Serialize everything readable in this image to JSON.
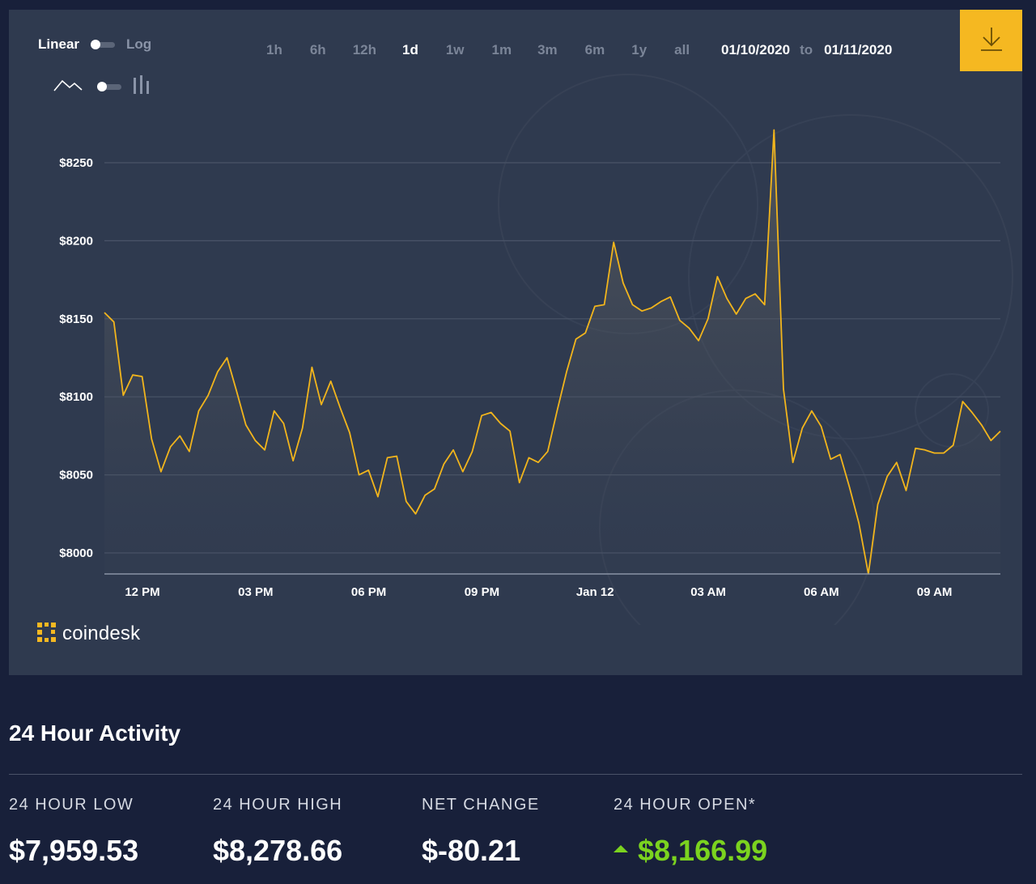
{
  "controls": {
    "scale_linear": "Linear",
    "scale_log": "Log",
    "ranges": [
      {
        "label": "1h",
        "active": false
      },
      {
        "label": "6h",
        "active": false
      },
      {
        "label": "12h",
        "active": false
      },
      {
        "label": "1d",
        "active": true
      },
      {
        "label": "1w",
        "active": false
      },
      {
        "label": "1m",
        "active": false
      },
      {
        "label": "3m",
        "active": false
      },
      {
        "label": "6m",
        "active": false
      },
      {
        "label": "1y",
        "active": false
      },
      {
        "label": "all",
        "active": false
      }
    ],
    "date_from": "01/10/2020",
    "date_to_word": "to",
    "date_to": "01/11/2020"
  },
  "brand": {
    "name": "coindesk",
    "accent": "#f5b821"
  },
  "colors": {
    "line": "#f2b51c",
    "grid": "#4a5468",
    "panel": "#2f3a4f",
    "page": "#18203a",
    "positive": "#7bd31f"
  },
  "chart_data": {
    "type": "area",
    "series": [
      {
        "values": [
          8154,
          8148,
          8101,
          8114,
          8113,
          8073,
          8052,
          8068,
          8075,
          8065,
          8091,
          8101,
          8116,
          8125,
          8104,
          8082,
          8072,
          8066,
          8091,
          8083,
          8059,
          8080,
          8119,
          8095,
          8110,
          8093,
          8077,
          8050,
          8053,
          8036,
          8061,
          8062,
          8033,
          8025,
          8037,
          8041,
          8057,
          8066,
          8052,
          8065,
          8088,
          8090,
          8083,
          8078,
          8045,
          8061,
          8058,
          8065,
          8091,
          8116,
          8137,
          8141,
          8158,
          8159,
          8199,
          8173,
          8159,
          8155,
          8157,
          8161,
          8164,
          8149,
          8144,
          8136,
          8150,
          8177,
          8163,
          8153,
          8163,
          8166,
          8159,
          8271,
          8105,
          8058,
          8080,
          8091,
          8081,
          8060,
          8063,
          8042,
          8019,
          7985,
          8031,
          8049,
          8058,
          8040,
          8067,
          8066,
          8064,
          8064,
          8069,
          8097,
          8090,
          8082,
          8072,
          8078
        ]
      }
    ],
    "x_ticks": [
      "12 PM",
      "03 PM",
      "06 PM",
      "09 PM",
      "Jan 12",
      "03 AM",
      "06 AM",
      "09 AM"
    ],
    "y_ticks": [
      "$8000",
      "$8050",
      "$8100",
      "$8150",
      "$8200",
      "$8250"
    ],
    "ylim": [
      7986,
      8283
    ],
    "grid": true
  },
  "activity": {
    "title": "24 Hour Activity",
    "stats": [
      {
        "label": "24 HOUR LOW",
        "value": "$7,959.53"
      },
      {
        "label": "24 HOUR HIGH",
        "value": "$8,278.66"
      },
      {
        "label": "NET CHANGE",
        "value": "$-80.21"
      },
      {
        "label": "24 HOUR OPEN*",
        "value": "$8,166.99"
      }
    ]
  }
}
